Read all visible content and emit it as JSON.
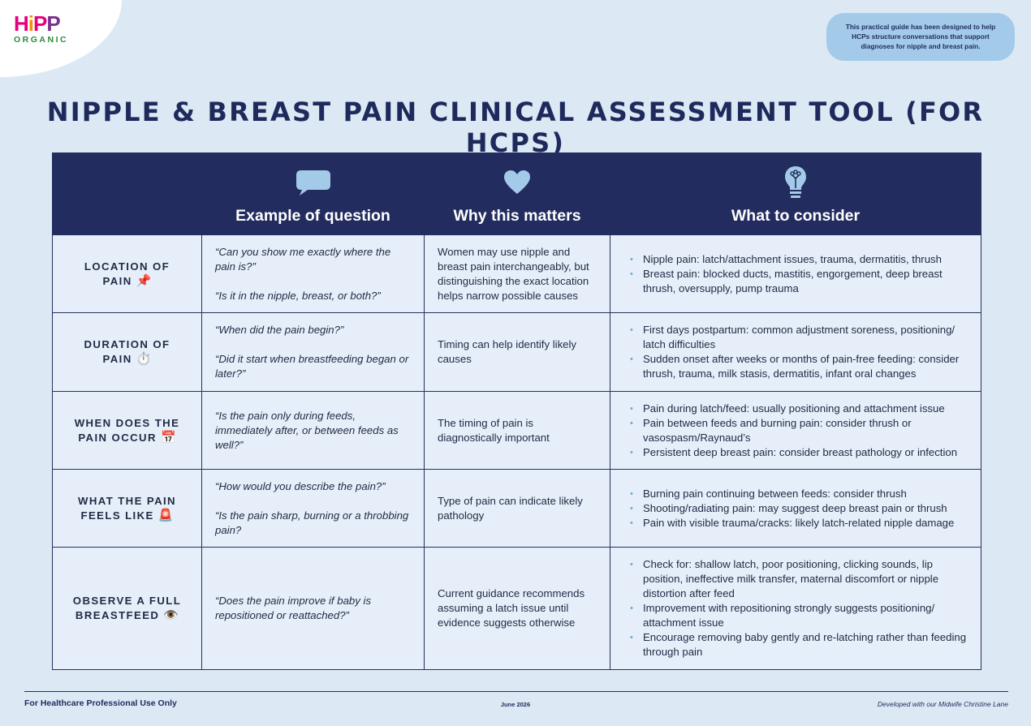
{
  "brand": {
    "logo_letters": [
      "H",
      "i",
      "P",
      "P"
    ],
    "logo_colors": [
      "#e5007e",
      "#f39200",
      "#e5007e",
      "#7b2f8e"
    ],
    "sub": "ORGANIC"
  },
  "intro_text": "This practical guide has been designed to help HCPs structure conversations that support diagnoses for nipple and breast pain.",
  "title": "NIPPLE & BREAST PAIN CLINICAL ASSESSMENT TOOL (FOR HCPS)",
  "table": {
    "headers": [
      {
        "icon": "speech-bubble-icon",
        "label": "Example of question"
      },
      {
        "icon": "heart-icon",
        "label": "Why this matters"
      },
      {
        "icon": "lightbulb-icon",
        "label": "What to consider"
      }
    ],
    "rows": [
      {
        "label_line1": "LOCATION OF",
        "label_line2": "PAIN",
        "emoji": "📌",
        "questions": [
          "“Can you show me exactly where the pain is?”",
          "“Is it in the nipple, breast, or both?”"
        ],
        "why": "Women may use nipple and breast pain interchangeably, but distinguishing the exact location helps narrow possible causes",
        "consider": [
          "Nipple pain: latch/attachment issues, trauma, dermatitis, thrush",
          "Breast pain: blocked ducts, mastitis, engorgement, deep breast thrush, oversupply, pump trauma"
        ]
      },
      {
        "label_line1": "DURATION OF",
        "label_line2": "PAIN",
        "emoji": "⏱️",
        "questions": [
          "“When did the pain begin?”",
          "“Did it start when breastfeeding began or later?”"
        ],
        "why": "Timing can help identify likely causes",
        "consider": [
          "First days postpartum: common adjustment soreness, positioning/ latch difficulties",
          "Sudden onset after weeks or months of pain-free feeding: consider thrush, trauma, milk stasis, dermatitis, infant oral changes"
        ]
      },
      {
        "label_line1": "WHEN DOES THE",
        "label_line2": "PAIN OCCUR",
        "emoji": "📅",
        "questions": [
          "“Is the pain only during feeds, immediately after, or between feeds as well?”"
        ],
        "why": "The timing of pain is diagnostically important",
        "consider": [
          "Pain during latch/feed: usually positioning and attachment issue",
          "Pain between feeds and burning pain: consider thrush or vasospasm/Raynaud’s",
          "Persistent deep breast pain: consider breast pathology or infection"
        ]
      },
      {
        "label_line1": "WHAT THE PAIN",
        "label_line2": "FEELS LIKE",
        "emoji": "🚨",
        "questions": [
          "“How would you describe the pain?”",
          "“Is the pain sharp, burning or a throbbing pain?"
        ],
        "why": "Type of pain can indicate likely pathology",
        "consider": [
          "Burning pain continuing between feeds: consider thrush",
          "Shooting/radiating pain: may suggest deep breast pain or thrush",
          "Pain with visible trauma/cracks: likely latch-related nipple damage"
        ]
      },
      {
        "label_line1": "OBSERVE A FULL",
        "label_line2": "BREASTFEED",
        "emoji": "👁️",
        "questions": [
          "“Does the pain improve if baby is repositioned or reattached?”"
        ],
        "why": "Current guidance recommends assuming a latch issue until evidence suggests otherwise",
        "consider": [
          "Check for: shallow latch, poor positioning, clicking sounds, lip position, ineffective milk transfer, maternal discomfort or nipple distortion after feed",
          "Improvement with repositioning strongly suggests positioning/ attachment issue",
          "Encourage removing baby gently and re-latching rather than feeding through pain"
        ]
      }
    ]
  },
  "footer": {
    "left": "For Healthcare Professional Use Only",
    "middle": "June 2026",
    "right": "Developed with our Midwife Christine Lane"
  }
}
